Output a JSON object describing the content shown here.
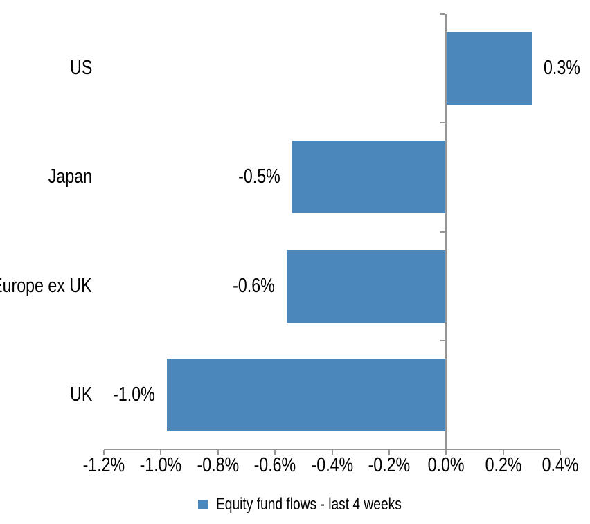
{
  "chart_data": {
    "type": "bar",
    "orientation": "horizontal",
    "title": "",
    "categories": [
      "US",
      "Japan",
      "Europe ex UK",
      "UK"
    ],
    "series": [
      {
        "name": "Equity fund flows - last 4 weeks",
        "values": [
          0.3,
          -0.5,
          -0.6,
          -1.0
        ],
        "value_labels": [
          "0.3%",
          "-0.5%",
          "-0.6%",
          "-1.0%"
        ],
        "bar_values_measured_pct": [
          0.3,
          -0.54,
          -0.56,
          -0.98
        ]
      }
    ],
    "unit": "%",
    "xlim": [
      -1.2,
      0.4
    ],
    "x_tick_step": 0.2,
    "x_ticks": [
      -1.2,
      -1.0,
      -0.8,
      -0.6,
      -0.4,
      -0.2,
      0.0,
      0.2,
      0.4
    ],
    "x_tick_labels": [
      "-1.2%",
      "-1.0%",
      "-0.8%",
      "-0.6%",
      "-0.4%",
      "-0.2%",
      "0.0%",
      "0.2%",
      "0.4%"
    ],
    "grid": false,
    "legend": {
      "position": "bottom",
      "entries": [
        {
          "label": "Equity fund flows - last 4 weeks",
          "marker_color": "#4c87bc"
        }
      ]
    },
    "colors": {
      "bar": "#4c87bc",
      "axis": "#969696",
      "text": "#000000",
      "background": "#ffffff"
    }
  }
}
